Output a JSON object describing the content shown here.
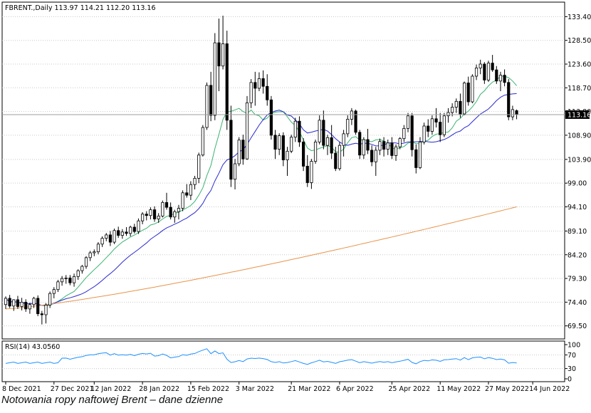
{
  "caption": "Notowania ropy naftowej Brent – dane dzienne",
  "chart_data": {
    "type": "candlestick",
    "header": "FBRENT.,Daily  113.97 114.21 112.20 113.16",
    "last_price_label": "113.16",
    "y_ticks": [
      "133.40",
      "128.50",
      "123.60",
      "118.70",
      "113.80",
      "108.90",
      "103.90",
      "99.00",
      "94.10",
      "89.10",
      "84.20",
      "79.30",
      "74.40",
      "69.50"
    ],
    "ylim": [
      66.8,
      136.4
    ],
    "x_labels": [
      {
        "i": 0,
        "label": "8 Dec 2021"
      },
      {
        "i": 12,
        "label": "27 Dec 2021"
      },
      {
        "i": 22,
        "label": "12 Jan 2022"
      },
      {
        "i": 34,
        "label": "28 Jan 2022"
      },
      {
        "i": 46,
        "label": "15 Feb 2022"
      },
      {
        "i": 58,
        "label": "3 Mar 2022"
      },
      {
        "i": 71,
        "label": "21 Mar 2022"
      },
      {
        "i": 83,
        "label": "6 Apr 2022"
      },
      {
        "i": 96,
        "label": "25 Apr 2022"
      },
      {
        "i": 108,
        "label": "11 May 2022"
      },
      {
        "i": 120,
        "label": "27 May 2022"
      },
      {
        "i": 131,
        "label": "14 Jun 2022"
      }
    ],
    "ohlc": [
      [
        73.9,
        75.6,
        73.0,
        75.2
      ],
      [
        75.2,
        75.9,
        73.2,
        73.6
      ],
      [
        73.6,
        75.0,
        72.6,
        74.9
      ],
      [
        74.9,
        75.7,
        73.0,
        73.5
      ],
      [
        73.5,
        75.3,
        72.7,
        74.4
      ],
      [
        74.4,
        75.0,
        72.4,
        73.0
      ],
      [
        73.0,
        74.3,
        72.0,
        73.9
      ],
      [
        73.9,
        75.5,
        73.2,
        75.2
      ],
      [
        75.2,
        75.8,
        71.5,
        72.0
      ],
      [
        72.0,
        72.6,
        69.8,
        71.8
      ],
      [
        71.8,
        74.2,
        70.0,
        73.8
      ],
      [
        73.8,
        76.6,
        73.2,
        76.2
      ],
      [
        76.2,
        77.5,
        75.2,
        77.0
      ],
      [
        77.0,
        79.0,
        76.5,
        78.6
      ],
      [
        78.6,
        79.8,
        77.8,
        79.3
      ],
      [
        79.3,
        80.0,
        78.2,
        79.4
      ],
      [
        79.4,
        80.0,
        77.9,
        78.4
      ],
      [
        78.4,
        80.3,
        77.6,
        79.7
      ],
      [
        79.7,
        81.2,
        79.0,
        80.9
      ],
      [
        80.9,
        82.1,
        80.3,
        81.8
      ],
      [
        81.8,
        83.9,
        81.3,
        83.6
      ],
      [
        83.6,
        85.0,
        82.9,
        84.6
      ],
      [
        84.6,
        85.3,
        83.9,
        84.8
      ],
      [
        84.8,
        86.8,
        84.3,
        86.4
      ],
      [
        86.4,
        88.0,
        85.8,
        87.6
      ],
      [
        87.6,
        88.7,
        87.0,
        88.3
      ],
      [
        88.3,
        89.1,
        86.0,
        86.8
      ],
      [
        86.8,
        89.6,
        86.4,
        89.2
      ],
      [
        89.2,
        90.0,
        87.7,
        88.2
      ],
      [
        88.2,
        89.5,
        87.5,
        88.9
      ],
      [
        88.9,
        89.9,
        88.1,
        88.6
      ],
      [
        88.6,
        90.2,
        88.0,
        89.9
      ],
      [
        89.9,
        90.6,
        88.6,
        89.0
      ],
      [
        89.0,
        91.7,
        88.5,
        91.2
      ],
      [
        91.2,
        93.0,
        90.5,
        92.6
      ],
      [
        92.6,
        93.2,
        91.3,
        92.3
      ],
      [
        92.3,
        94.0,
        91.5,
        93.5
      ],
      [
        93.5,
        94.2,
        91.0,
        91.6
      ],
      [
        91.6,
        92.8,
        90.8,
        92.2
      ],
      [
        92.2,
        95.4,
        91.9,
        95.0
      ],
      [
        95.0,
        97.0,
        93.5,
        94.0
      ],
      [
        94.0,
        95.0,
        91.5,
        92.0
      ],
      [
        92.0,
        93.5,
        90.8,
        93.1
      ],
      [
        93.1,
        94.5,
        91.5,
        93.8
      ],
      [
        93.8,
        97.5,
        93.2,
        97.0
      ],
      [
        97.0,
        98.8,
        96.0,
        96.5
      ],
      [
        96.5,
        99.4,
        95.5,
        98.7
      ],
      [
        98.7,
        100.5,
        97.7,
        100.0
      ],
      [
        100.0,
        105.3,
        99.0,
        104.8
      ],
      [
        104.8,
        111.0,
        104.5,
        110.5
      ],
      [
        110.5,
        119.8,
        110.0,
        119.2
      ],
      [
        119.2,
        122.0,
        111.8,
        113.0
      ],
      [
        113.0,
        130.0,
        112.0,
        128.0
      ],
      [
        128.0,
        133.0,
        118.0,
        123.2
      ],
      [
        123.2,
        133.6,
        122.5,
        127.8
      ],
      [
        127.8,
        130.5,
        110.0,
        112.0
      ],
      [
        112.0,
        115.0,
        98.2,
        99.8
      ],
      [
        99.8,
        104.0,
        97.7,
        103.0
      ],
      [
        103.0,
        108.5,
        102.5,
        107.9
      ],
      [
        107.9,
        109.0,
        102.8,
        104.0
      ],
      [
        104.0,
        117.0,
        103.8,
        115.6
      ],
      [
        115.6,
        120.5,
        114.5,
        119.8
      ],
      [
        119.8,
        122.0,
        115.0,
        118.6
      ],
      [
        118.6,
        121.9,
        118.0,
        120.6
      ],
      [
        120.6,
        122.3,
        117.5,
        119.0
      ],
      [
        119.0,
        121.5,
        115.0,
        116.2
      ],
      [
        116.2,
        117.0,
        108.0,
        108.9
      ],
      [
        108.9,
        110.0,
        104.0,
        106.0
      ],
      [
        106.0,
        109.3,
        104.8,
        108.8
      ],
      [
        108.8,
        109.5,
        102.5,
        103.8
      ],
      [
        103.8,
        106.5,
        100.5,
        105.6
      ],
      [
        105.6,
        109.0,
        105.2,
        108.5
      ],
      [
        108.5,
        112.5,
        107.5,
        111.8
      ],
      [
        111.8,
        112.8,
        106.5,
        107.5
      ],
      [
        107.5,
        108.3,
        101.5,
        102.5
      ],
      [
        102.5,
        104.8,
        98.2,
        99.1
      ],
      [
        99.1,
        104.0,
        97.8,
        103.5
      ],
      [
        103.5,
        108.0,
        103.0,
        107.5
      ],
      [
        107.5,
        113.0,
        107.0,
        112.0
      ],
      [
        112.0,
        114.0,
        106.0,
        106.8
      ],
      [
        106.8,
        109.0,
        104.8,
        108.4
      ],
      [
        108.4,
        111.0,
        104.0,
        105.2
      ],
      [
        105.2,
        106.5,
        101.5,
        102.0
      ],
      [
        102.0,
        107.5,
        101.6,
        106.8
      ],
      [
        106.8,
        110.0,
        104.5,
        109.2
      ],
      [
        109.2,
        113.0,
        108.5,
        112.2
      ],
      [
        112.2,
        114.5,
        111.0,
        113.9
      ],
      [
        113.9,
        114.2,
        109.0,
        109.5
      ],
      [
        109.5,
        110.0,
        104.0,
        104.8
      ],
      [
        104.8,
        108.5,
        104.0,
        108.0
      ],
      [
        108.0,
        110.2,
        105.0,
        105.8
      ],
      [
        105.8,
        106.8,
        102.5,
        103.4
      ],
      [
        103.4,
        106.5,
        100.5,
        105.8
      ],
      [
        105.8,
        108.2,
        104.8,
        107.6
      ],
      [
        107.6,
        108.5,
        104.5,
        106.0
      ],
      [
        106.0,
        108.0,
        104.8,
        107.3
      ],
      [
        107.3,
        108.5,
        104.0,
        104.7
      ],
      [
        104.7,
        107.0,
        103.6,
        106.5
      ],
      [
        106.5,
        108.5,
        106.0,
        108.2
      ],
      [
        108.2,
        111.0,
        107.5,
        110.3
      ],
      [
        110.3,
        113.5,
        109.5,
        112.9
      ],
      [
        112.9,
        113.5,
        104.5,
        105.9
      ],
      [
        105.9,
        107.0,
        101.0,
        102.2
      ],
      [
        102.2,
        108.5,
        101.9,
        107.5
      ],
      [
        107.5,
        111.5,
        107.0,
        110.8
      ],
      [
        110.8,
        112.2,
        108.5,
        109.7
      ],
      [
        109.7,
        113.0,
        109.0,
        112.3
      ],
      [
        112.3,
        114.5,
        110.5,
        111.6
      ],
      [
        111.6,
        113.5,
        107.5,
        109.0
      ],
      [
        109.0,
        113.5,
        108.5,
        112.9
      ],
      [
        112.9,
        114.5,
        111.5,
        113.6
      ],
      [
        113.6,
        115.5,
        112.8,
        114.7
      ],
      [
        114.7,
        116.5,
        113.5,
        115.9
      ],
      [
        115.9,
        117.5,
        112.5,
        113.3
      ],
      [
        113.3,
        120.0,
        113.0,
        119.7
      ],
      [
        119.7,
        121.0,
        115.0,
        115.8
      ],
      [
        115.8,
        121.5,
        115.5,
        121.1
      ],
      [
        121.1,
        123.5,
        120.3,
        122.8
      ],
      [
        122.8,
        124.5,
        121.5,
        123.6
      ],
      [
        123.6,
        124.0,
        119.5,
        120.3
      ],
      [
        120.3,
        124.3,
        119.9,
        123.8
      ],
      [
        123.8,
        125.5,
        122.0,
        122.4
      ],
      [
        122.4,
        123.2,
        119.5,
        120.1
      ],
      [
        120.1,
        122.0,
        118.0,
        121.3
      ],
      [
        121.3,
        122.5,
        119.0,
        119.8
      ],
      [
        119.8,
        120.5,
        112.0,
        112.7
      ],
      [
        112.7,
        115.0,
        112.0,
        114.2
      ],
      [
        113.97,
        114.21,
        112.2,
        113.16
      ]
    ],
    "rsi_label": "RSI(14) 43.0560",
    "rsi_ticks": [
      "100",
      "70",
      "30",
      "0"
    ],
    "rsi_ylim": [
      0,
      100
    ],
    "rsi_levels": [
      30,
      70
    ],
    "colors": {
      "candle": "#000000",
      "ma_green": "#3cb371",
      "ma_blue": "#2a2ad0",
      "ma_orange": "#e8944a",
      "rsi_line": "#1e90ff",
      "grid": "#c8c8c8"
    }
  }
}
